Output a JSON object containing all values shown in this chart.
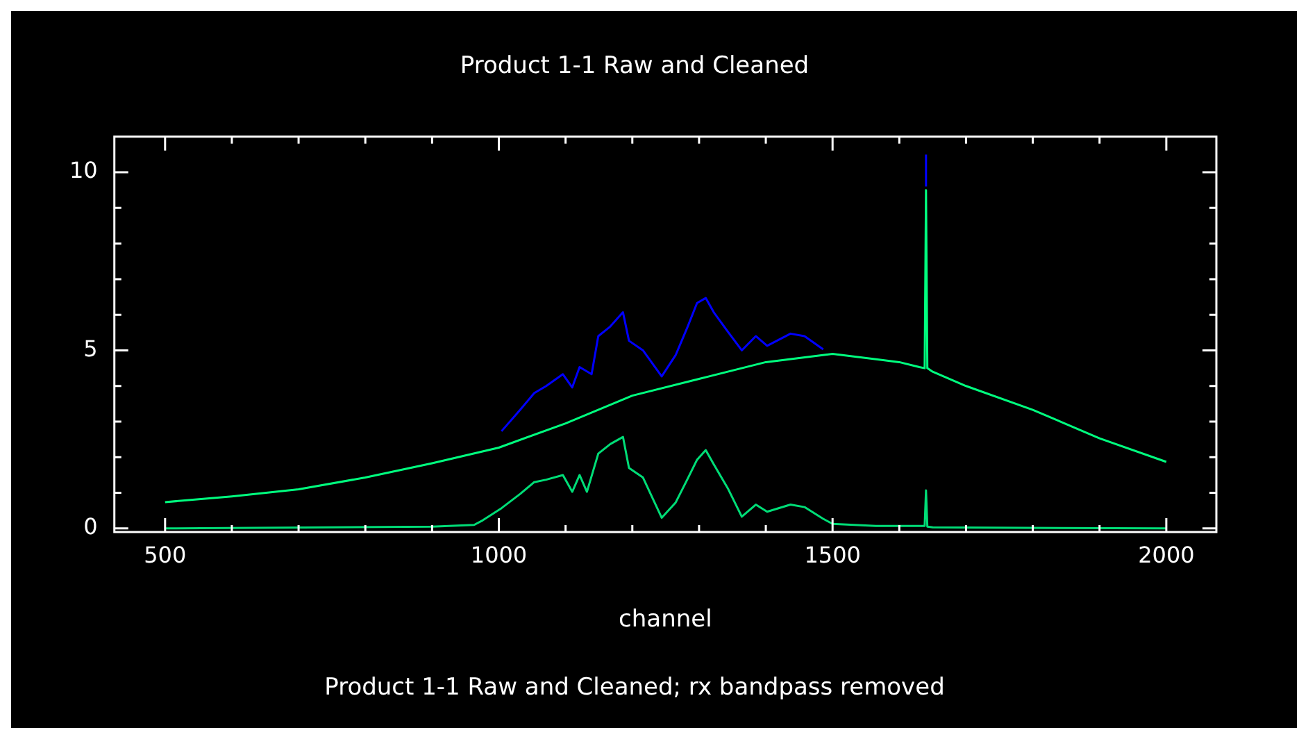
{
  "chart_data": {
    "type": "line",
    "title": "Product 1-1 Raw and Cleaned",
    "xlabel": "channel",
    "annotations": [
      "Product 1-1 Raw and Cleaned; rx bandpass removed"
    ],
    "xlim": [
      424,
      2075
    ],
    "ylim": [
      -0.1,
      11
    ],
    "xticks": [
      500,
      {
        "value": 600,
        "label": null
      },
      {
        "value": 700,
        "label": null
      },
      {
        "value": 800,
        "label": null
      },
      {
        "value": 900,
        "label": null
      },
      1000,
      {
        "value": 1100,
        "label": null
      },
      {
        "value": 1200,
        "label": null
      },
      {
        "value": 1300,
        "label": null
      },
      {
        "value": 1400,
        "label": null
      },
      1500,
      {
        "value": 1600,
        "label": null
      },
      {
        "value": 1700,
        "label": null
      },
      {
        "value": 1800,
        "label": null
      },
      {
        "value": 1900,
        "label": null
      },
      2000
    ],
    "yticks": [
      0,
      {
        "value": 1,
        "label": null
      },
      {
        "value": 2,
        "label": null
      },
      {
        "value": 3,
        "label": null
      },
      {
        "value": 4,
        "label": null
      },
      5,
      {
        "value": 6,
        "label": null
      },
      {
        "value": 7,
        "label": null
      },
      {
        "value": 8,
        "label": null
      },
      {
        "value": 9,
        "label": null
      },
      10
    ],
    "marker": "none",
    "line_style": "solid",
    "series": [
      {
        "color": "#0000ff",
        "x": [
          1004,
          1032,
          1053,
          1071,
          1096,
          1110,
          1121,
          1139,
          1149,
          1167,
          1186,
          1195,
          1216,
          1244,
          1265,
          1283,
          1297,
          1310,
          1322,
          1343,
          1364,
          1385,
          1402,
          1437,
          1458,
          1486,
          1560,
          1640,
          1640
        ],
        "values": [
          2.73,
          3.33,
          3.8,
          4.0,
          4.33,
          3.96,
          4.53,
          4.33,
          5.4,
          5.67,
          6.07,
          5.27,
          5.0,
          4.27,
          4.87,
          5.67,
          6.33,
          6.47,
          6.07,
          5.53,
          5.0,
          5.4,
          5.13,
          5.47,
          5.4,
          5.03,
          null,
          9.6,
          10.5
        ]
      },
      {
        "color": "#00ff7f",
        "x": [
          500,
          600,
          700,
          800,
          900,
          1000,
          1100,
          1200,
          1300,
          1400,
          1500,
          1600,
          1630,
          1638,
          1640,
          1642,
          1650,
          1700,
          1800,
          1900,
          2000
        ],
        "values": [
          0.74,
          0.9,
          1.1,
          1.43,
          1.83,
          2.27,
          2.95,
          3.73,
          4.2,
          4.67,
          4.9,
          4.67,
          4.53,
          4.5,
          9.5,
          4.5,
          4.4,
          4.0,
          3.33,
          2.53,
          1.87
        ]
      },
      {
        "color": "#00dd77",
        "x": [
          500,
          900,
          963,
          976,
          1004,
          1032,
          1053,
          1071,
          1096,
          1110,
          1121,
          1132,
          1149,
          1167,
          1186,
          1195,
          1216,
          1244,
          1265,
          1283,
          1297,
          1310,
          1322,
          1343,
          1364,
          1385,
          1402,
          1437,
          1458,
          1486,
          1500,
          1565,
          1635,
          1638,
          1640,
          1642,
          1650,
          2000
        ],
        "values": [
          0.0,
          0.05,
          0.1,
          0.23,
          0.57,
          0.97,
          1.3,
          1.37,
          1.5,
          1.03,
          1.5,
          1.03,
          2.1,
          2.37,
          2.57,
          1.7,
          1.43,
          0.3,
          0.73,
          1.4,
          1.93,
          2.2,
          1.8,
          1.13,
          0.33,
          0.67,
          0.47,
          0.67,
          0.6,
          0.27,
          0.13,
          0.07,
          0.07,
          0.07,
          1.07,
          0.05,
          0.03,
          0.0
        ]
      }
    ]
  }
}
